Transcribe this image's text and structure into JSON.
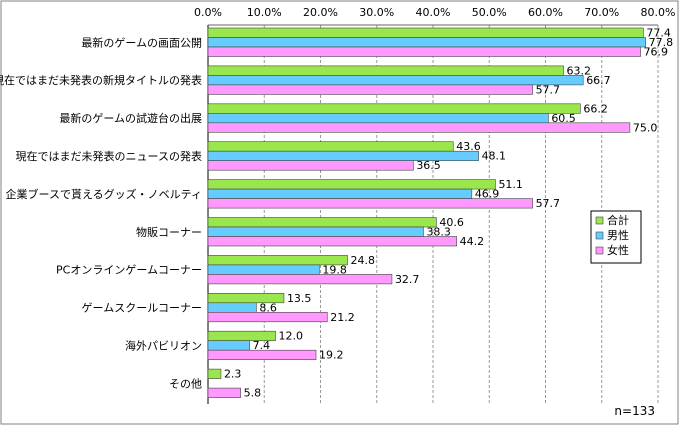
{
  "chart_data": {
    "type": "bar",
    "orientation": "horizontal",
    "categories": [
      "最新のゲームの画面公開",
      "現在ではまだ未発表の新規タイトルの発表",
      "最新のゲームの試遊台の出展",
      "現在ではまだ未発表のニュースの発表",
      "企業ブースで貰えるグッズ・ノベルティ",
      "物販コーナー",
      "PCオンラインゲームコーナー",
      "ゲームスクールコーナー",
      "海外パビリオン",
      "その他"
    ],
    "series": [
      {
        "name": "合計",
        "color": "#99e64d",
        "values": [
          77.4,
          63.2,
          66.2,
          43.6,
          51.1,
          40.6,
          24.8,
          13.5,
          12.0,
          2.3
        ]
      },
      {
        "name": "男性",
        "color": "#66ccff",
        "values": [
          77.8,
          66.7,
          60.5,
          48.1,
          46.9,
          38.3,
          19.8,
          8.6,
          7.4,
          null
        ]
      },
      {
        "name": "女性",
        "color": "#ff99ff",
        "values": [
          76.9,
          57.7,
          75.0,
          36.5,
          57.7,
          44.2,
          32.7,
          21.2,
          19.2,
          5.8
        ]
      }
    ],
    "value_labels": [
      [
        "77.4",
        "77.8",
        "76.9"
      ],
      [
        "63.2",
        "66.7",
        "57.7"
      ],
      [
        "66.2",
        "60.5",
        "75.0"
      ],
      [
        "43.6",
        "48.1",
        "36.5"
      ],
      [
        "51.1",
        "46.9",
        "57.7"
      ],
      [
        "40.6",
        "38.3",
        "44.2"
      ],
      [
        "24.8",
        "19.8",
        "32.7"
      ],
      [
        "13.5",
        "8.6",
        "21.2"
      ],
      [
        "12.0",
        "7.4",
        "19.2"
      ],
      [
        "2.3",
        "",
        "5.8"
      ]
    ],
    "xlim": [
      0,
      80
    ],
    "ticks": [
      0,
      10,
      20,
      30,
      40,
      50,
      60,
      70,
      80
    ],
    "tick_labels": [
      "0.0%",
      "10.0%",
      "20.0%",
      "30.0%",
      "40.0%",
      "50.0%",
      "60.0%",
      "70.0%",
      "80.0%"
    ],
    "grid": true,
    "grid_style": "dashed vertical",
    "legend_position": "right",
    "note": "n=133"
  }
}
